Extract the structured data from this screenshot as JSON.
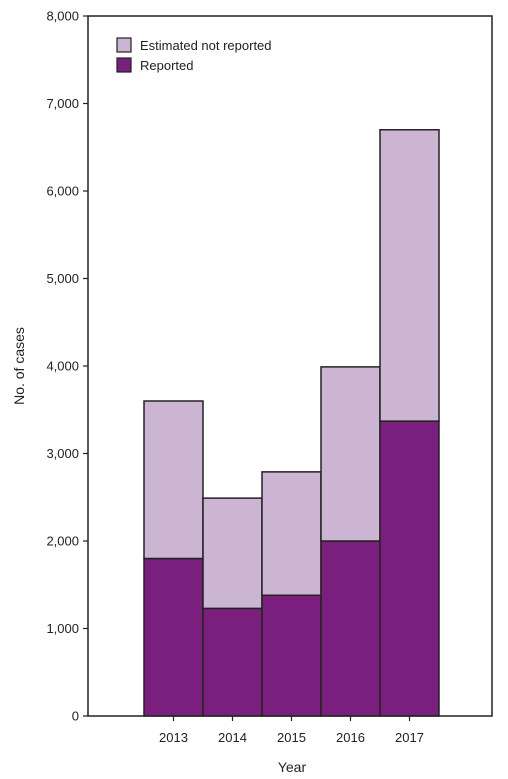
{
  "chart_data": {
    "type": "bar",
    "stacked": true,
    "categories": [
      "2013",
      "2014",
      "2015",
      "2016",
      "2017"
    ],
    "series": [
      {
        "name": "Reported",
        "values": [
          1800,
          1230,
          1380,
          2000,
          3370
        ],
        "color": "#7b1f7e"
      },
      {
        "name": "Estimated not reported",
        "values": [
          1800,
          1260,
          1410,
          1990,
          3330
        ],
        "color": "#cbb5d3"
      }
    ],
    "xlabel": "Year",
    "ylabel": "No. of cases",
    "ylim": [
      0,
      8000
    ],
    "yticks": [
      "0",
      "1,000",
      "2,000",
      "3,000",
      "4,000",
      "5,000",
      "6,000",
      "7,000",
      "8,000"
    ],
    "grid": false,
    "legend_position": "top-left"
  }
}
